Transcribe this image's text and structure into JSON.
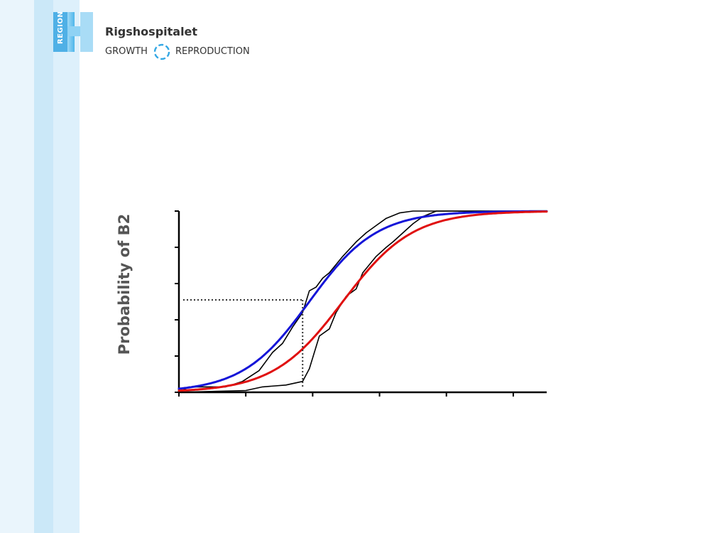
{
  "header": {
    "region_label": "REGION",
    "hospital_name": "Rigshospitalet",
    "tagline_left": "GROWTH",
    "tagline_right": "REPRODUCTION",
    "colors": {
      "brand_blue": "#6fc3ec",
      "brand_dark": "#1e9be0"
    }
  },
  "chart_data": {
    "type": "line",
    "ylabel": "Probability of B2",
    "xlim": [
      0,
      5.5
    ],
    "ylim": [
      0,
      1
    ],
    "x_ticks": [
      0,
      1,
      2,
      3,
      4,
      5
    ],
    "y_ticks": [
      0,
      0.2,
      0.4,
      0.6,
      0.8,
      1.0
    ],
    "series": [
      {
        "kind": "fitted",
        "color": "#1515d8",
        "mid": 1.95,
        "slope": 0.5
      },
      {
        "kind": "fitted",
        "color": "#e01010",
        "mid": 2.45,
        "slope": 0.52
      },
      {
        "kind": "empirical",
        "color": "#000000",
        "points": [
          [
            0,
            0
          ],
          [
            0.05,
            0.01
          ],
          [
            0.15,
            0.03
          ],
          [
            0.7,
            0.03
          ],
          [
            0.95,
            0.06
          ],
          [
            1.2,
            0.12
          ],
          [
            1.4,
            0.22
          ],
          [
            1.55,
            0.27
          ],
          [
            1.7,
            0.36
          ],
          [
            1.85,
            0.44
          ],
          [
            1.95,
            0.56
          ],
          [
            2.05,
            0.58
          ],
          [
            2.15,
            0.63
          ],
          [
            2.25,
            0.66
          ],
          [
            2.45,
            0.75
          ],
          [
            2.65,
            0.83
          ],
          [
            2.8,
            0.88
          ],
          [
            2.95,
            0.92
          ],
          [
            3.1,
            0.96
          ],
          [
            3.3,
            0.99
          ],
          [
            3.5,
            1.0
          ],
          [
            5.5,
            1.0
          ]
        ]
      },
      {
        "kind": "empirical",
        "color": "#000000",
        "points": [
          [
            0,
            0
          ],
          [
            1.0,
            0.01
          ],
          [
            1.25,
            0.03
          ],
          [
            1.6,
            0.04
          ],
          [
            1.85,
            0.06
          ],
          [
            1.95,
            0.13
          ],
          [
            2.1,
            0.31
          ],
          [
            2.25,
            0.35
          ],
          [
            2.35,
            0.44
          ],
          [
            2.5,
            0.53
          ],
          [
            2.65,
            0.57
          ],
          [
            2.75,
            0.66
          ],
          [
            2.95,
            0.75
          ],
          [
            3.1,
            0.8
          ],
          [
            3.2,
            0.83
          ],
          [
            3.35,
            0.88
          ],
          [
            3.5,
            0.93
          ],
          [
            3.65,
            0.97
          ],
          [
            3.85,
            1.0
          ],
          [
            5.5,
            1.0
          ]
        ]
      }
    ],
    "reference_point": {
      "x": 1.85,
      "y": 0.51,
      "style": "dotted"
    }
  }
}
